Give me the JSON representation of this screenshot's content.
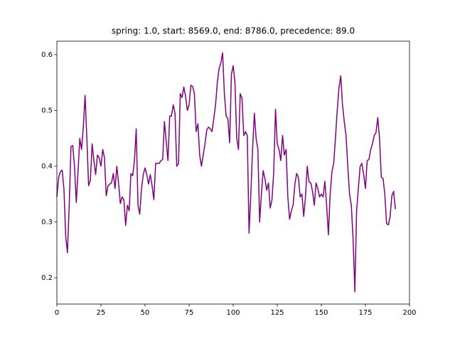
{
  "chart_data": {
    "type": "line",
    "title": "spring: 1.0, start: 8569.0, end: 8786.0, precedence: 89.0",
    "color": "#800080",
    "values": [
      0.345,
      0.38,
      0.39,
      0.393,
      0.36,
      0.275,
      0.245,
      0.33,
      0.435,
      0.437,
      0.4,
      0.335,
      0.39,
      0.45,
      0.43,
      0.47,
      0.527,
      0.45,
      0.365,
      0.375,
      0.44,
      0.41,
      0.385,
      0.42,
      0.415,
      0.4,
      0.43,
      0.415,
      0.347,
      0.365,
      0.368,
      0.37,
      0.387,
      0.36,
      0.4,
      0.37,
      0.333,
      0.345,
      0.34,
      0.294,
      0.33,
      0.32,
      0.387,
      0.383,
      0.41,
      0.467,
      0.33,
      0.314,
      0.36,
      0.385,
      0.397,
      0.385,
      0.368,
      0.385,
      0.365,
      0.34,
      0.405,
      0.405,
      0.405,
      0.41,
      0.412,
      0.48,
      0.445,
      0.41,
      0.49,
      0.49,
      0.51,
      0.495,
      0.4,
      0.405,
      0.53,
      0.523,
      0.542,
      0.525,
      0.5,
      0.51,
      0.545,
      0.543,
      0.53,
      0.462,
      0.476,
      0.42,
      0.4,
      0.42,
      0.44,
      0.465,
      0.47,
      0.467,
      0.462,
      0.485,
      0.51,
      0.55,
      0.575,
      0.585,
      0.603,
      0.53,
      0.49,
      0.485,
      0.442,
      0.565,
      0.58,
      0.55,
      0.45,
      0.43,
      0.53,
      0.522,
      0.455,
      0.462,
      0.455,
      0.28,
      0.35,
      0.43,
      0.495,
      0.45,
      0.43,
      0.3,
      0.35,
      0.392,
      0.378,
      0.357,
      0.37,
      0.325,
      0.34,
      0.39,
      0.502,
      0.44,
      0.43,
      0.41,
      0.455,
      0.42,
      0.43,
      0.345,
      0.305,
      0.32,
      0.33,
      0.368,
      0.387,
      0.38,
      0.345,
      0.35,
      0.31,
      0.345,
      0.4,
      0.372,
      0.37,
      0.355,
      0.33,
      0.37,
      0.36,
      0.345,
      0.35,
      0.345,
      0.373,
      0.33,
      0.277,
      0.35,
      0.39,
      0.405,
      0.45,
      0.5,
      0.54,
      0.562,
      0.51,
      0.48,
      0.455,
      0.4,
      0.35,
      0.33,
      0.27,
      0.175,
      0.32,
      0.36,
      0.4,
      0.405,
      0.385,
      0.36,
      0.41,
      0.412,
      0.43,
      0.44,
      0.455,
      0.46,
      0.487,
      0.45,
      0.38,
      0.378,
      0.35,
      0.297,
      0.295,
      0.31,
      0.347,
      0.355,
      0.323
    ],
    "xlim": [
      0,
      200
    ],
    "xticks": [
      0,
      25,
      50,
      75,
      100,
      125,
      150,
      175,
      200
    ],
    "ylim": [
      0.153,
      0.624
    ],
    "yticks": [
      0.2,
      0.3,
      0.4,
      0.5,
      0.6
    ]
  }
}
